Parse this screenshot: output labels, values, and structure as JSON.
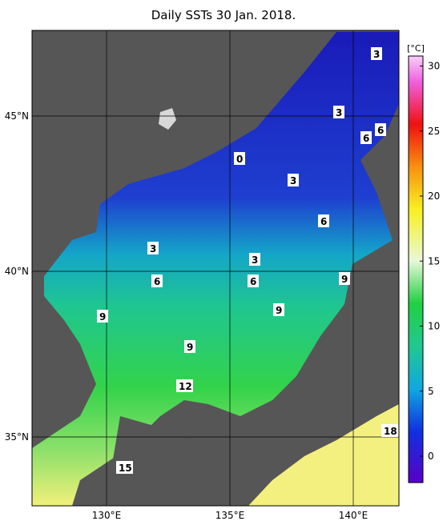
{
  "title": "Daily SSTs 30 Jan. 2018.",
  "unit": "[°C]",
  "lon_labels": [
    "130°E",
    "135°E",
    "140°E"
  ],
  "lat_labels": [
    "35°N",
    "40°N",
    "45°N"
  ],
  "colorbar_ticks": [
    0,
    5,
    10,
    15,
    20,
    25,
    30
  ],
  "contour_labels": [
    "3",
    "3",
    "6",
    "6",
    "0",
    "3",
    "6",
    "3",
    "3",
    "6",
    "6",
    "9",
    "9",
    "9",
    "9",
    "12",
    "18",
    "15"
  ]
}
